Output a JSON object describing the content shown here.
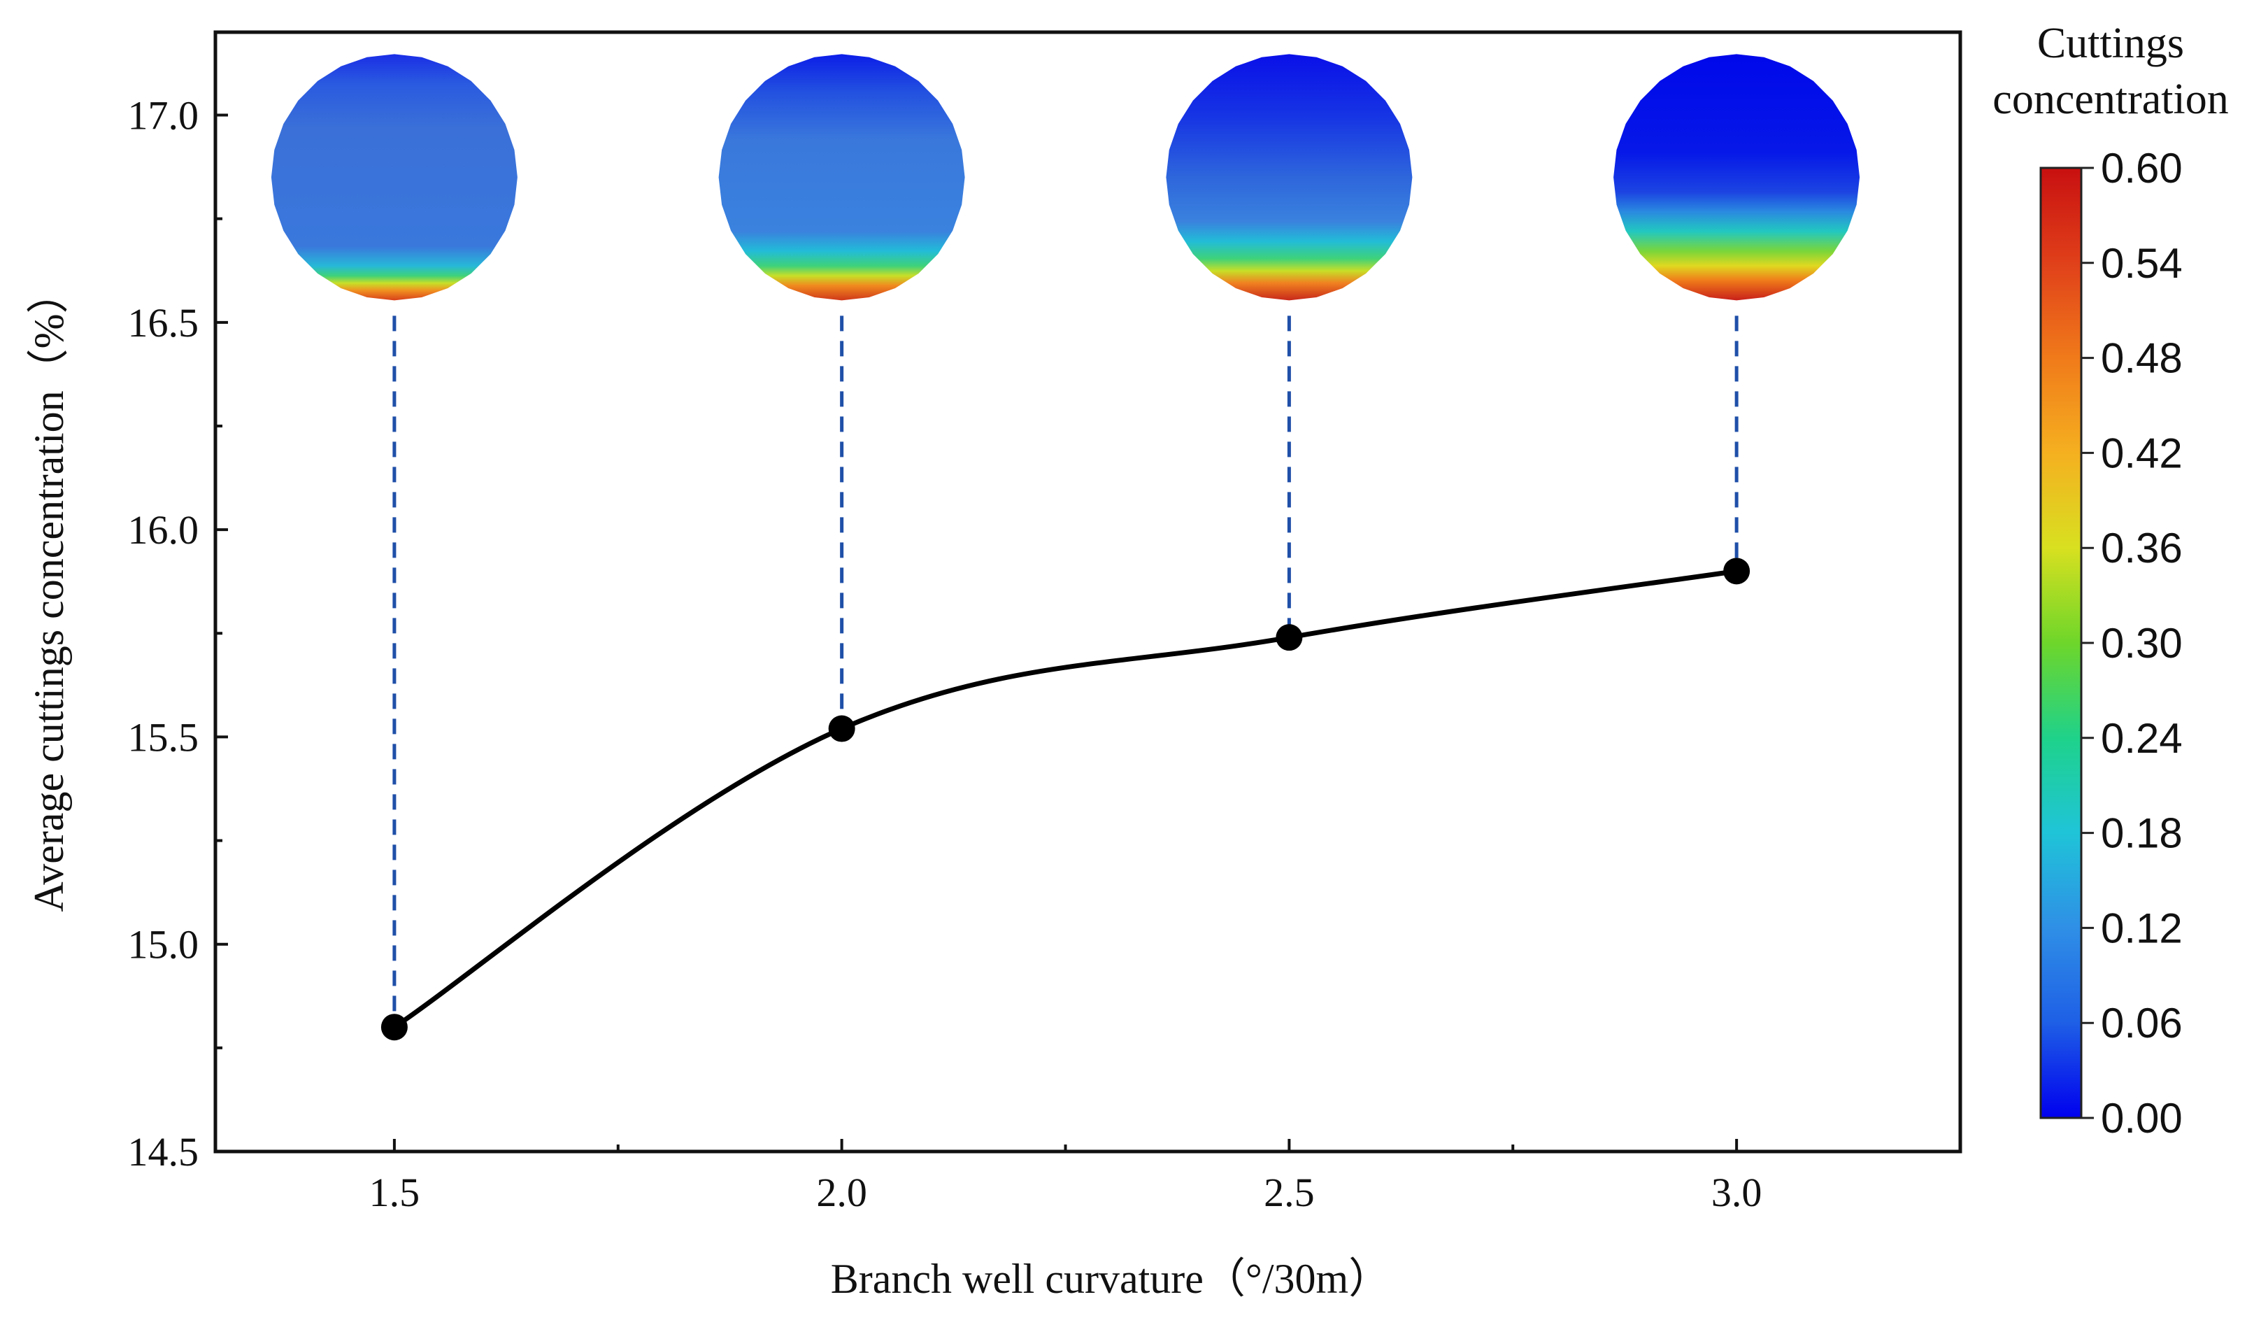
{
  "chart_data": {
    "type": "line",
    "title": "",
    "xlabel": "Branch well curvature（°/30m）",
    "ylabel": "Average cuttings concentration（%）",
    "x": [
      1.5,
      2.0,
      2.5,
      3.0
    ],
    "values": [
      14.8,
      15.52,
      15.74,
      15.9
    ],
    "xlim": [
      1.3,
      3.25
    ],
    "ylim": [
      14.5,
      17.2
    ],
    "x_ticks": [
      1.5,
      2.0,
      2.5,
      3.0
    ],
    "x_tick_labels": [
      "1.5",
      "2.0",
      "2.5",
      "3.0"
    ],
    "y_ticks": [
      14.5,
      15.0,
      15.5,
      16.0,
      16.5,
      17.0
    ],
    "y_tick_labels": [
      "14.5",
      "15.0",
      "15.5",
      "16.0",
      "16.5",
      "17.0"
    ],
    "grid": false,
    "line_color": "#000000",
    "marker_color": "#000000",
    "dashed_line_color": "#1f4fa8",
    "insets": [
      {
        "x": 1.5,
        "description_scale": "cross-section contour"
      },
      {
        "x": 2.0,
        "description_scale": "cross-section contour"
      },
      {
        "x": 2.5,
        "description_scale": "cross-section contour"
      },
      {
        "x": 3.0,
        "description_scale": "cross-section contour"
      }
    ],
    "colorbar": {
      "title_line1": "Cuttings",
      "title_line2": "concentration",
      "min": 0.0,
      "max": 0.6,
      "tick_labels": [
        "0.00",
        "0.06",
        "0.12",
        "0.18",
        "0.24",
        "0.30",
        "0.36",
        "0.42",
        "0.48",
        "0.54",
        "0.60"
      ],
      "colors": [
        "#0000ee",
        "#1e5fe6",
        "#2f8fe6",
        "#1fc4d8",
        "#1fd28a",
        "#6ed62a",
        "#d8e020",
        "#f5b020",
        "#f07a1a",
        "#e0401a",
        "#c81010"
      ]
    }
  }
}
